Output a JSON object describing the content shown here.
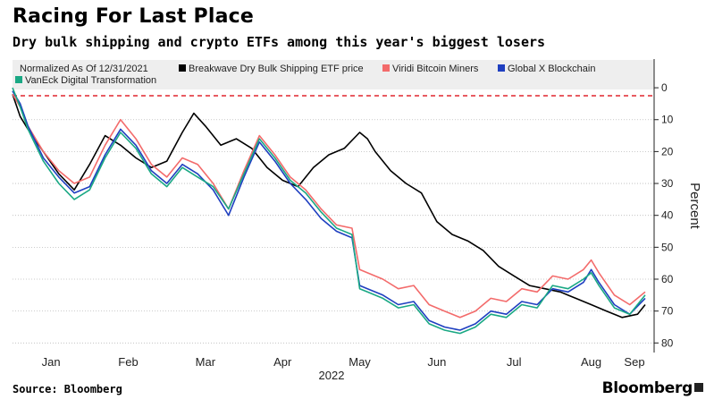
{
  "header": {
    "title": "Racing For Last Place",
    "subtitle": "Dry bulk shipping and crypto ETFs among this year's biggest losers"
  },
  "footer": {
    "source": "Source: Bloomberg",
    "brand": "Bloomberg"
  },
  "chart_data": {
    "type": "line",
    "legend_note": "Normalized As Of 12/31/2021",
    "legend_position": "top",
    "ylabel": "Percent",
    "ylim": [
      -83,
      9
    ],
    "yticks": [
      0,
      -10,
      -20,
      -30,
      -40,
      -50,
      -60,
      -70,
      -80
    ],
    "ytick_labels": [
      "0",
      "10",
      "20",
      "30",
      "40",
      "50",
      "60",
      "70",
      "80"
    ],
    "y_axis_side": "right",
    "x_domain": [
      0,
      8.2
    ],
    "xticks": [
      {
        "label": "Jan",
        "x": 0.5
      },
      {
        "label": "Feb",
        "x": 1.5
      },
      {
        "label": "Mar",
        "x": 2.5
      },
      {
        "label": "Apr",
        "x": 3.5
      },
      {
        "label": "May",
        "x": 4.5
      },
      {
        "label": "Jun",
        "x": 5.5
      },
      {
        "label": "Jul",
        "x": 6.5
      },
      {
        "label": "Aug",
        "x": 7.5
      },
      {
        "label": "Sep",
        "x": 8.3
      }
    ],
    "year_label": "2022",
    "reference_line": {
      "y": -2.5,
      "color": "#e0262f",
      "style": "dashed"
    },
    "grid": {
      "horizontal": true,
      "style": "dotted"
    },
    "series": [
      {
        "name": "Breakwave Dry Bulk Shipping ETF price",
        "color": "#000000",
        "x": [
          0,
          0.1,
          0.2,
          0.4,
          0.6,
          0.8,
          1.0,
          1.2,
          1.4,
          1.6,
          1.8,
          2.0,
          2.2,
          2.35,
          2.5,
          2.7,
          2.9,
          3.1,
          3.3,
          3.5,
          3.7,
          3.9,
          4.1,
          4.3,
          4.5,
          4.6,
          4.7,
          4.9,
          5.1,
          5.3,
          5.5,
          5.7,
          5.9,
          6.1,
          6.3,
          6.5,
          6.7,
          6.9,
          7.1,
          7.3,
          7.5,
          7.7,
          7.9,
          8.1,
          8.2
        ],
        "y": [
          -2,
          -9,
          -13,
          -20,
          -27,
          -32,
          -24,
          -15,
          -18,
          -22,
          -25,
          -23,
          -14,
          -8,
          -12,
          -18,
          -16,
          -19,
          -25,
          -29,
          -31,
          -25,
          -21,
          -19,
          -14,
          -16,
          -20,
          -26,
          -30,
          -33,
          -42,
          -46,
          -48,
          -51,
          -56,
          -59,
          -62,
          -63,
          -64,
          -66,
          -68,
          -70,
          -72,
          -71,
          -68
        ]
      },
      {
        "name": "Viridi Bitcoin Miners",
        "color": "#f36b6b",
        "x": [
          0,
          0.1,
          0.2,
          0.4,
          0.6,
          0.8,
          1.0,
          1.2,
          1.4,
          1.6,
          1.8,
          2.0,
          2.2,
          2.4,
          2.6,
          2.8,
          3.0,
          3.2,
          3.4,
          3.6,
          3.8,
          4.0,
          4.2,
          4.4,
          4.5,
          4.6,
          4.8,
          5.0,
          5.2,
          5.4,
          5.6,
          5.8,
          6.0,
          6.2,
          6.4,
          6.6,
          6.8,
          7.0,
          7.2,
          7.4,
          7.5,
          7.6,
          7.8,
          8.0,
          8.2
        ],
        "y": [
          -2,
          -6,
          -12,
          -20,
          -26,
          -30,
          -28,
          -18,
          -10,
          -16,
          -24,
          -28,
          -22,
          -24,
          -30,
          -38,
          -26,
          -15,
          -21,
          -28,
          -32,
          -38,
          -43,
          -44,
          -57,
          -58,
          -60,
          -63,
          -62,
          -68,
          -70,
          -72,
          -70,
          -66,
          -67,
          -63,
          -64,
          -59,
          -60,
          -57,
          -54,
          -58,
          -65,
          -68,
          -64
        ]
      },
      {
        "name": "Global X Blockchain",
        "color": "#1f3fc0",
        "x": [
          0,
          0.1,
          0.2,
          0.4,
          0.6,
          0.8,
          1.0,
          1.2,
          1.4,
          1.6,
          1.8,
          2.0,
          2.2,
          2.4,
          2.6,
          2.8,
          3.0,
          3.2,
          3.4,
          3.6,
          3.8,
          4.0,
          4.2,
          4.4,
          4.5,
          4.6,
          4.8,
          5.0,
          5.2,
          5.4,
          5.6,
          5.8,
          6.0,
          6.2,
          6.4,
          6.6,
          6.8,
          7.0,
          7.2,
          7.4,
          7.5,
          7.6,
          7.8,
          8.0,
          8.2
        ],
        "y": [
          -1,
          -5,
          -12,
          -22,
          -28,
          -33,
          -31,
          -21,
          -13,
          -18,
          -26,
          -30,
          -24,
          -27,
          -32,
          -40,
          -28,
          -17,
          -23,
          -30,
          -35,
          -41,
          -45,
          -47,
          -62,
          -63,
          -65,
          -68,
          -67,
          -73,
          -75,
          -76,
          -74,
          -70,
          -71,
          -67,
          -68,
          -63,
          -64,
          -61,
          -57,
          -61,
          -68,
          -71,
          -66
        ]
      },
      {
        "name": "VanEck Digital Transformation",
        "color": "#1aa884",
        "x": [
          0,
          0.1,
          0.2,
          0.4,
          0.6,
          0.8,
          1.0,
          1.2,
          1.4,
          1.6,
          1.8,
          2.0,
          2.2,
          2.4,
          2.6,
          2.8,
          3.0,
          3.2,
          3.4,
          3.6,
          3.8,
          4.0,
          4.2,
          4.4,
          4.5,
          4.6,
          4.8,
          5.0,
          5.2,
          5.4,
          5.6,
          5.8,
          6.0,
          6.2,
          6.4,
          6.6,
          6.8,
          7.0,
          7.2,
          7.4,
          7.5,
          7.6,
          7.8,
          8.0,
          8.2
        ],
        "y": [
          0,
          -6,
          -13,
          -23,
          -30,
          -35,
          -32,
          -22,
          -14,
          -19,
          -27,
          -31,
          -25,
          -28,
          -31,
          -38,
          -27,
          -16,
          -22,
          -29,
          -33,
          -39,
          -44,
          -46,
          -63,
          -64,
          -66,
          -69,
          -68,
          -74,
          -76,
          -77,
          -75,
          -71,
          -72,
          -68,
          -69,
          -62,
          -63,
          -60,
          -58,
          -62,
          -69,
          -71,
          -65
        ]
      }
    ]
  }
}
